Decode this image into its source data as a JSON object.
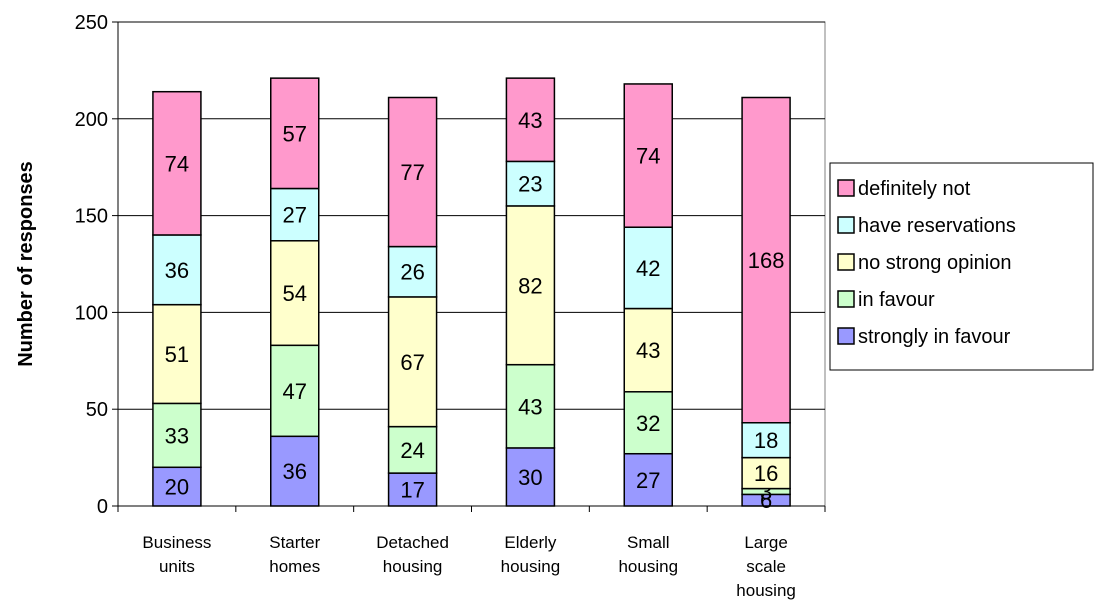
{
  "chart_data": {
    "type": "bar",
    "stacked": true,
    "categories": [
      [
        "Business",
        "units"
      ],
      [
        "Starter",
        "homes"
      ],
      [
        "Detached",
        "housing"
      ],
      [
        "Elderly",
        "housing"
      ],
      [
        "Small",
        "housing"
      ],
      [
        "Large",
        "scale",
        "housing"
      ]
    ],
    "series": [
      {
        "name": "strongly in favour",
        "color": "#9999ff",
        "values": [
          20,
          36,
          17,
          30,
          27,
          6
        ]
      },
      {
        "name": "in favour",
        "color": "#ccffcc",
        "values": [
          33,
          47,
          24,
          43,
          32,
          3
        ]
      },
      {
        "name": "no strong opinion",
        "color": "#ffffcc",
        "values": [
          51,
          54,
          67,
          82,
          43,
          16
        ]
      },
      {
        "name": "have reservations",
        "color": "#ccffff",
        "values": [
          36,
          27,
          26,
          23,
          42,
          18
        ]
      },
      {
        "name": "definitely not",
        "color": "#ff99cc",
        "values": [
          74,
          57,
          77,
          43,
          74,
          168
        ]
      }
    ],
    "legend_order": [
      "definitely not",
      "have reservations",
      "no strong opinion",
      "in favour",
      "strongly in favour"
    ],
    "ylabel": "Number of responses",
    "xlabel": "",
    "title": "",
    "ylim": [
      0,
      250
    ],
    "yticks": [
      0,
      50,
      100,
      150,
      200,
      250
    ],
    "grid": true,
    "legend_position": "right",
    "plot_background": "#ffffff",
    "gridline_color": "#000000"
  }
}
